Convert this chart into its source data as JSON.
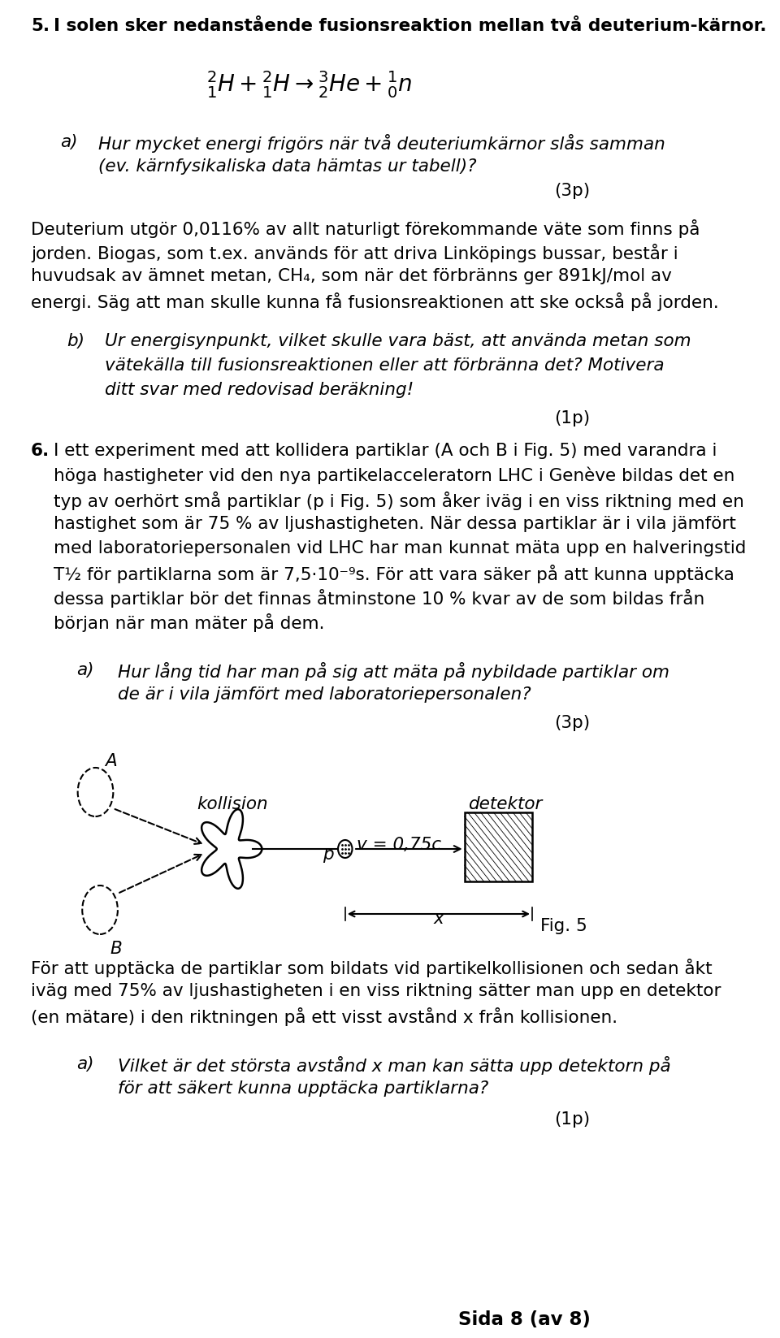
{
  "bg_color": "#ffffff",
  "page_width": 9.6,
  "page_height": 16.47,
  "s5_num": "5.",
  "s5_text": "I solen sker nedanstående fusionsreaktion mellan två deuterium-kärnor.",
  "q5a_it1": "Hur mycket energi frigörs när två deuteriumkärnor slås samman",
  "q5a_it2": "(ev. kärnfysikaliska data hämtas ur tabell)?",
  "pts3p_1": "(3p)",
  "deut_l1": "Deuterium utgör 0,0116% av allt naturligt förekommande väte som finns på",
  "deut_l2": "jorden. Biogas, som t.ex. används för att driva Linköpings bussar, består i",
  "deut_l3": "huvudsak av ämnet metan, CH₄, som när det förbränns ger 891kJ/mol av",
  "deut_l4": "energi. Säg att man skulle kunna få fusionsreaktionen att ske också på jorden.",
  "q5b_it1": "Ur energisynpunkt, vilket skulle vara bäst, att använda metan som",
  "q5b_it2": "vätekälla till fusionsreaktionen eller att förbränna det? Motivera",
  "q5b_it3": "ditt svar med redovisad beräkning!",
  "pts1p_1": "(1p)",
  "s6_num": "6.",
  "s6_l1": "I ett experiment med att kollidera partiklar (A och B i Fig. 5) med varandra i",
  "s6_l2": "höga hastigheter vid den nya partikelacceleratorn LHC i Genève bildas det en",
  "s6_l3": "typ av oerhört små partiklar (p i Fig. 5) som åker iväg i en viss riktning med en",
  "s6_l4": "hastighet som är 75 % av ljushastigheten. När dessa partiklar är i vila jämfört",
  "s6_l5": "med laboratoriepersonalen vid LHC har man kunnat mäta upp en halveringstid",
  "s6_l6": "T½ för partiklarna som är 7,5·10⁻⁹s. För att vara säker på att kunna upptäcka",
  "s6_l7": "dessa partiklar bör det finnas åtminstone 10 % kvar av de som bildas från",
  "s6_l8": "början när man mäter på dem.",
  "q6a_it1": "Hur lång tid har man på sig att mäta på nybildade partiklar om",
  "q6a_it2": "de är i vila jämfört med laboratoriepersonalen?",
  "pts3p_2": "(3p)",
  "diag_kollision": "kollision",
  "diag_detektor": "detektor",
  "diag_p": "p",
  "diag_v": "v = 0,75c",
  "diag_A": "A",
  "diag_B": "B",
  "diag_x": "x",
  "diag_fig5": "Fig. 5",
  "bot_l1": "För att upptäcka de partiklar som bildats vid partikelkollisionen och sedan åkt",
  "bot_l2": "iväg med 75% av ljushastigheten i en viss riktning sätter man upp en detektor",
  "bot_l3": "(en mätare) i den riktningen på ett visst avstånd x från kollisionen.",
  "q6a2_it1": "Vilket är det största avstånd x man kan sätta upp detektorn på",
  "q6a2_it2": "för att säkert kunna upptäcka partiklarna?",
  "pts1p_2": "(1p)",
  "footer": "Sida 8 (av 8)"
}
